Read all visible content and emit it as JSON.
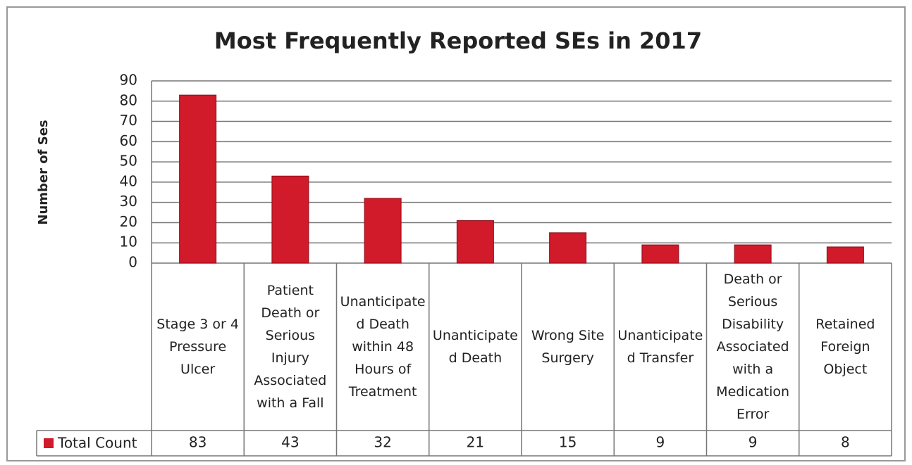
{
  "chart_data": {
    "type": "bar",
    "title": "Most Frequently Reported SEs in 2017",
    "y_label": "Number of Ses",
    "categories": [
      "Stage 3 or 4 Pressure Ulcer",
      "Patient Death or Serious Injury Associated with a Fall",
      "Unanticipated Death within 48 Hours of Treatment",
      "Unanticipated Death",
      "Wrong Site Surgery",
      "Unanticipated Transfer",
      "Death or Serious Disability Associated with a Medication Error",
      "Retained Foreign Object"
    ],
    "series": [
      {
        "name": "Total Count",
        "color": "#d11a2a",
        "values": [
          83,
          43,
          32,
          21,
          15,
          9,
          9,
          8
        ]
      }
    ],
    "ylim": [
      0,
      90
    ],
    "yticks": [
      0,
      10,
      20,
      30,
      40,
      50,
      60,
      70,
      80,
      90
    ],
    "grid": true
  }
}
